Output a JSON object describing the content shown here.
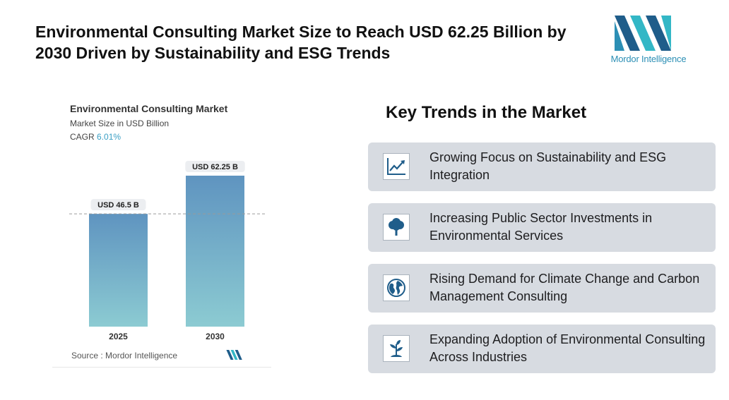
{
  "header": {
    "title": "Environmental Consulting Market Size to Reach USD 62.25 Billion by 2030 Driven by Sustainability and ESG Trends",
    "logo_text": "Mordor Intelligence"
  },
  "chart_data": {
    "type": "bar",
    "title": "Environmental Consulting Market",
    "subtitle": "Market Size in USD Billion",
    "cagr_label": "CAGR",
    "cagr_value": "6.01%",
    "categories": [
      "2025",
      "2030"
    ],
    "values": [
      46.5,
      62.25
    ],
    "value_labels": [
      "USD 46.5 B",
      "USD 62.25 B"
    ],
    "xlabel": "",
    "ylabel": "Market Size in USD Billion",
    "ylim": [
      0,
      62.25
    ],
    "reference_line": 46.5,
    "source": "Source :  Mordor Intelligence",
    "colors": {
      "bar_top": "#5f94c0",
      "bar_bottom": "#8ccbd2",
      "accent": "#3a9fc4"
    }
  },
  "trends": {
    "title": "Key Trends in the Market",
    "items": [
      {
        "text": "Growing Focus on Sustainability and ESG Integration",
        "icon": "growth-chart-icon"
      },
      {
        "text": "Increasing Public Sector Investments in Environmental Services",
        "icon": "tree-icon"
      },
      {
        "text": "Rising Demand for Climate Change and Carbon Management Consulting",
        "icon": "globe-icon"
      },
      {
        "text": "Expanding Adoption of Environmental Consulting Across Industries",
        "icon": "sprout-icon"
      }
    ]
  }
}
